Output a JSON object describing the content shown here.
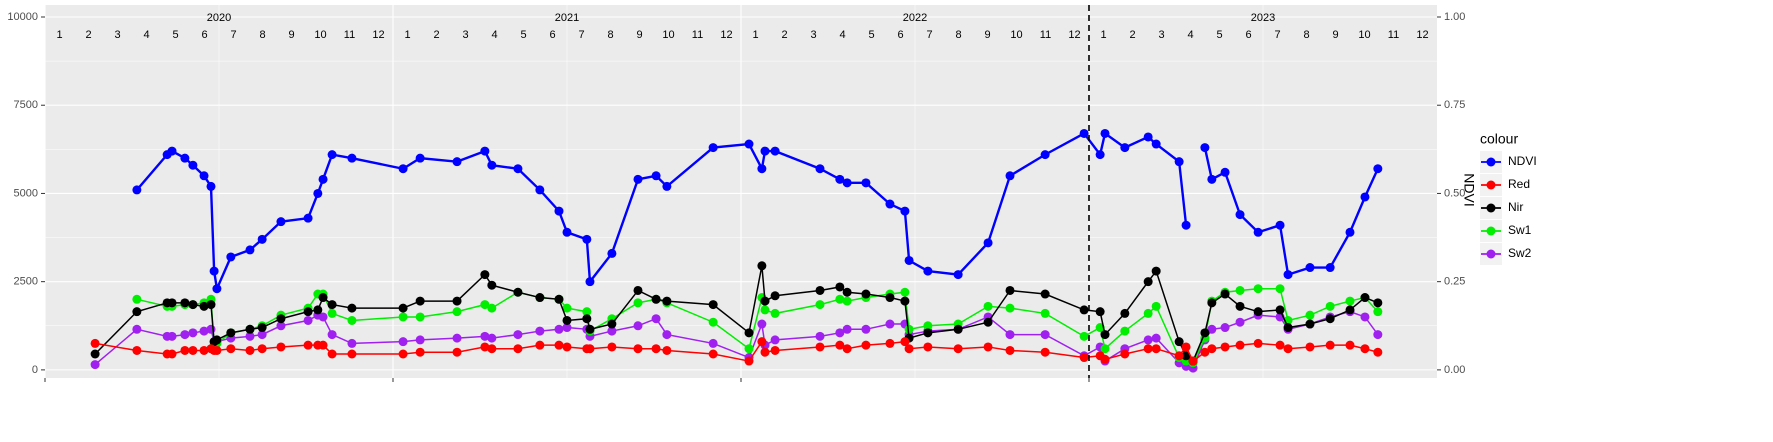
{
  "chart_data": {
    "type": "line",
    "y2label": "NDVI",
    "legend_title": "colour",
    "legend_position": "right",
    "years": [
      2020,
      2021,
      2022,
      2023
    ],
    "months": [
      1,
      2,
      3,
      4,
      5,
      6,
      7,
      8,
      9,
      10,
      11,
      12
    ],
    "vline": 2023,
    "xlim": [
      2020,
      2024
    ],
    "xticks": [
      2020,
      2021,
      2022,
      2023
    ],
    "ylim": [
      -230,
      10340
    ],
    "yticks": [
      0,
      2500,
      5000,
      7500,
      10000
    ],
    "y2lim": [
      -0.023,
      1.034
    ],
    "y2ticks": [
      {
        "value": 0,
        "label": "0.00"
      },
      {
        "value": 0.25,
        "label": "0.25"
      },
      {
        "value": 0.5,
        "label": "0.50"
      },
      {
        "value": 0.75,
        "label": "0.75"
      },
      {
        "value": 1,
        "label": "1.00"
      }
    ],
    "grid": true,
    "x": [
      2020.144,
      2020.264,
      2020.351,
      2020.365,
      2020.402,
      2020.425,
      2020.457,
      2020.477,
      2020.486,
      2020.494,
      2020.534,
      2020.589,
      2020.624,
      2020.678,
      2020.756,
      2020.784,
      2020.799,
      2020.825,
      2020.882,
      2021.029,
      2021.078,
      2021.184,
      2021.264,
      2021.284,
      2021.359,
      2021.422,
      2021.477,
      2021.5,
      2021.557,
      2021.566,
      2021.629,
      2021.704,
      2021.756,
      2021.787,
      2021.92,
      2022.023,
      2022.06,
      2022.069,
      2022.098,
      2022.227,
      2022.284,
      2022.305,
      2022.359,
      2022.428,
      2022.471,
      2022.483,
      2022.537,
      2022.624,
      2022.71,
      2022.773,
      2022.874,
      2022.986,
      2023.032,
      2023.046,
      2023.103,
      2023.17,
      2023.193,
      2023.259,
      2023.279,
      2023.299,
      2023.333,
      2023.353,
      2023.391,
      2023.434,
      2023.486,
      2023.549,
      2023.572,
      2023.635,
      2023.693,
      2023.75,
      2023.793,
      2023.83
    ],
    "series": [
      {
        "name": "NDVI",
        "color": "#0000ff",
        "axis": "y2",
        "values": [
          null,
          0.51,
          0.61,
          0.62,
          0.6,
          0.58,
          0.55,
          0.52,
          0.28,
          0.23,
          0.32,
          0.34,
          0.37,
          0.42,
          0.43,
          0.5,
          0.54,
          0.61,
          0.6,
          0.57,
          0.6,
          0.59,
          0.62,
          0.58,
          0.57,
          0.51,
          0.45,
          0.39,
          0.37,
          0.25,
          0.33,
          0.54,
          0.55,
          0.52,
          0.63,
          0.64,
          0.57,
          0.62,
          0.62,
          0.57,
          0.54,
          0.53,
          0.53,
          0.47,
          0.45,
          0.31,
          0.28,
          0.27,
          0.36,
          0.55,
          0.61,
          0.67,
          0.61,
          0.67,
          0.63,
          0.66,
          0.64,
          0.59,
          0.41,
          null,
          0.63,
          0.54,
          0.56,
          0.44,
          0.39,
          0.41,
          0.27,
          0.29,
          0.29,
          0.39,
          0.49,
          0.57
        ]
      },
      {
        "name": "Red",
        "color": "#ff0000",
        "values": [
          750,
          550,
          450,
          450,
          550,
          550,
          550,
          600,
          550,
          550,
          600,
          550,
          600,
          650,
          700,
          700,
          700,
          450,
          450,
          450,
          500,
          500,
          650,
          600,
          600,
          700,
          700,
          650,
          600,
          600,
          650,
          600,
          600,
          550,
          450,
          250,
          800,
          500,
          550,
          650,
          700,
          600,
          700,
          750,
          800,
          600,
          650,
          600,
          650,
          550,
          500,
          350,
          400,
          300,
          450,
          600,
          600,
          400,
          650,
          250,
          500,
          600,
          650,
          700,
          750,
          700,
          600,
          650,
          700,
          700,
          600,
          500
        ]
      },
      {
        "name": "Nir",
        "color": "#000000",
        "values": [
          450,
          1650,
          1900,
          1900,
          1900,
          1850,
          1800,
          1850,
          800,
          850,
          1050,
          1150,
          1200,
          1450,
          1650,
          1700,
          2050,
          1850,
          1750,
          1750,
          1950,
          1950,
          2700,
          2400,
          2200,
          2050,
          2000,
          1400,
          1450,
          1150,
          1300,
          2250,
          2000,
          1950,
          1850,
          1050,
          2950,
          1950,
          2100,
          2250,
          2350,
          2200,
          2150,
          2050,
          1950,
          900,
          1050,
          1150,
          1350,
          2250,
          2150,
          1700,
          1650,
          1000,
          1600,
          2500,
          2800,
          800,
          400,
          250,
          1050,
          1900,
          2150,
          1800,
          1650,
          1700,
          1200,
          1300,
          1450,
          1700,
          2050,
          1900
        ]
      },
      {
        "name": "Sw1",
        "color": "#00ee00",
        "values": [
          null,
          2000,
          1800,
          1800,
          1850,
          1850,
          1900,
          2000,
          700,
          750,
          1050,
          1150,
          1250,
          1550,
          1750,
          2150,
          2150,
          1600,
          1400,
          1500,
          1500,
          1650,
          1850,
          1750,
          2200,
          2050,
          2000,
          1750,
          1650,
          1100,
          1450,
          1900,
          2000,
          1900,
          1350,
          600,
          2050,
          1700,
          1600,
          1850,
          2000,
          1950,
          2050,
          2150,
          2200,
          1150,
          1250,
          1300,
          1800,
          1750,
          1600,
          950,
          1200,
          600,
          1100,
          1600,
          1800,
          350,
          250,
          200,
          900,
          1950,
          2200,
          2250,
          2300,
          2300,
          1400,
          1550,
          1800,
          1950,
          2050,
          1650
        ]
      },
      {
        "name": "Sw2",
        "color": "#a020f0",
        "values": [
          150,
          1150,
          950,
          950,
          1000,
          1050,
          1100,
          1150,
          800,
          800,
          900,
          950,
          1000,
          1250,
          1400,
          1550,
          1500,
          1000,
          750,
          800,
          850,
          900,
          950,
          900,
          1000,
          1100,
          1150,
          1200,
          1150,
          950,
          1100,
          1250,
          1450,
          1000,
          750,
          350,
          1300,
          700,
          850,
          950,
          1050,
          1150,
          1150,
          1300,
          1300,
          1000,
          1100,
          1150,
          1500,
          1000,
          1000,
          400,
          650,
          250,
          600,
          850,
          900,
          200,
          100,
          50,
          850,
          1150,
          1200,
          1350,
          1550,
          1500,
          1150,
          1300,
          1500,
          1650,
          1500,
          1000
        ]
      }
    ]
  }
}
